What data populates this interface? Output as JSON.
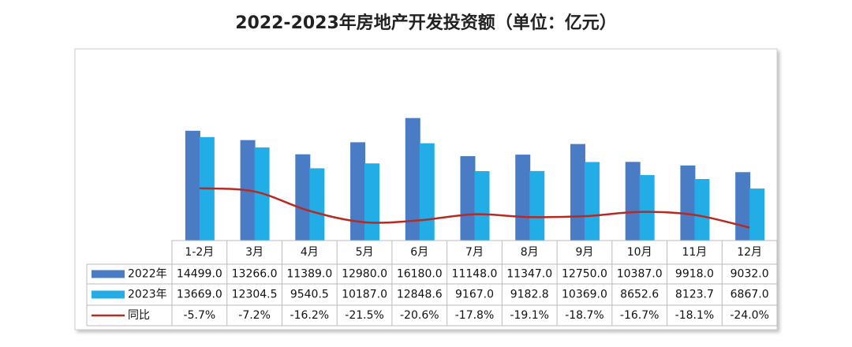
{
  "chart_data": {
    "type": "bar",
    "title": "2022-2023年房地产开发投资额（单位：亿元）",
    "categories": [
      "1-2月",
      "3月",
      "4月",
      "5月",
      "6月",
      "7月",
      "8月",
      "9月",
      "10月",
      "11月",
      "12月"
    ],
    "series": [
      {
        "name": "2022年",
        "color": "#4a7cc6",
        "values": [
          14499.0,
          13266.0,
          11389.0,
          12980.0,
          16180.0,
          11148.0,
          11347.0,
          12750.0,
          10387.0,
          9918.0,
          9032.0
        ],
        "value_labels": [
          "14499.0",
          "13266.0",
          "11389.0",
          "12980.0",
          "16180.0",
          "11148.0",
          "11347.0",
          "12750.0",
          "10387.0",
          "9918.0",
          "9032.0"
        ]
      },
      {
        "name": "2023年",
        "color": "#22ade6",
        "values": [
          13669.0,
          12304.5,
          9540.5,
          10187.0,
          12848.6,
          9167.0,
          9182.8,
          10369.0,
          8652.6,
          8123.7,
          6867.0
        ],
        "value_labels": [
          "13669.0",
          "12304.5",
          "9540.5",
          "10187.0",
          "12848.6",
          "9167.0",
          "9182.8",
          "10369.0",
          "8652.6",
          "8123.7",
          "6867.0"
        ]
      },
      {
        "name": "同比",
        "type": "line",
        "axis": "y2",
        "color": "#b52a22",
        "values": [
          -5.7,
          -7.2,
          -16.2,
          -21.5,
          -20.6,
          -17.8,
          -19.1,
          -18.7,
          -16.7,
          -18.1,
          -24.0
        ],
        "value_labels": [
          "-5.7%",
          "-7.2%",
          "-16.2%",
          "-21.5%",
          "-20.6%",
          "-17.8%",
          "-19.1%",
          "-18.7%",
          "-16.7%",
          "-18.1%",
          "-24.0%"
        ]
      }
    ],
    "ylim": [
      0,
      25000
    ],
    "y2lim": [
      -30,
      58
    ]
  }
}
